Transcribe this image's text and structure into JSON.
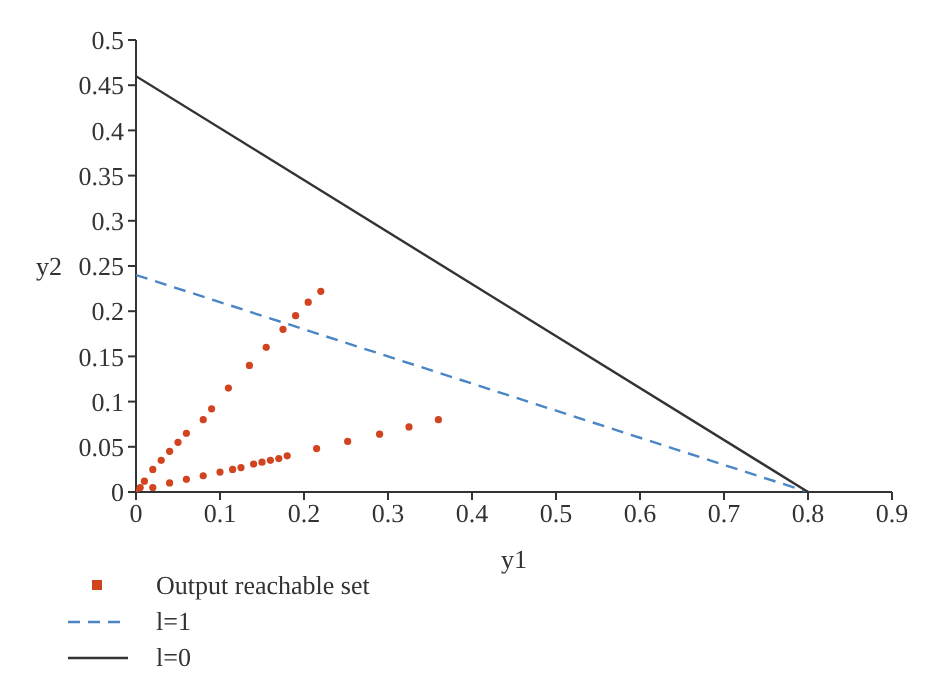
{
  "chart_data": {
    "type": "scatter",
    "xlabel": "y1",
    "ylabel": "y2",
    "xlim": [
      0,
      0.9
    ],
    "ylim": [
      0,
      0.5
    ],
    "xticks": [
      0,
      0.1,
      0.2,
      0.3,
      0.4,
      0.5,
      0.6,
      0.7,
      0.8,
      0.9
    ],
    "yticks": [
      0,
      0.05,
      0.1,
      0.15,
      0.2,
      0.25,
      0.3,
      0.35,
      0.4,
      0.45,
      0.5
    ],
    "grid": false,
    "legend": "bottom left",
    "series": [
      {
        "name": "Output reachable set",
        "type": "scatter",
        "marker": "circle",
        "color": "#d1441f",
        "x": [
          0,
          0.005,
          0.01,
          0.02,
          0.03,
          0.04,
          0.05,
          0.06,
          0.08,
          0.088,
          0.09,
          0.11,
          0.135,
          0.155,
          0.175,
          0.19,
          0.205,
          0.22,
          0.02,
          0.04,
          0.06,
          0.08,
          0.1,
          0.115,
          0.125,
          0.14,
          0.15,
          0.16,
          0.17,
          0.18,
          0.215,
          0.252,
          0.29,
          0.325,
          0.36
        ],
        "values": [
          0,
          0.005,
          0.012,
          0.025,
          0.035,
          0.045,
          0.055,
          0.065,
          0.08,
          null,
          0.092,
          0.115,
          0.14,
          0.16,
          0.18,
          0.195,
          0.21,
          0.222,
          0.005,
          0.01,
          0.014,
          0.018,
          0.022,
          0.025,
          0.027,
          0.031,
          0.033,
          0.035,
          0.037,
          0.04,
          0.048,
          0.056,
          0.064,
          0.072,
          0.08
        ]
      },
      {
        "name": "l=1",
        "type": "line",
        "line_style": "dashed",
        "marker": "none",
        "color": "#4a86c5",
        "x": [
          0,
          0.8
        ],
        "values": [
          0.24,
          0
        ]
      },
      {
        "name": "l=0",
        "type": "line",
        "line_style": "solid",
        "marker": "none",
        "color": "#333333",
        "x": [
          0,
          0.8
        ],
        "values": [
          0.46,
          0
        ]
      }
    ]
  }
}
